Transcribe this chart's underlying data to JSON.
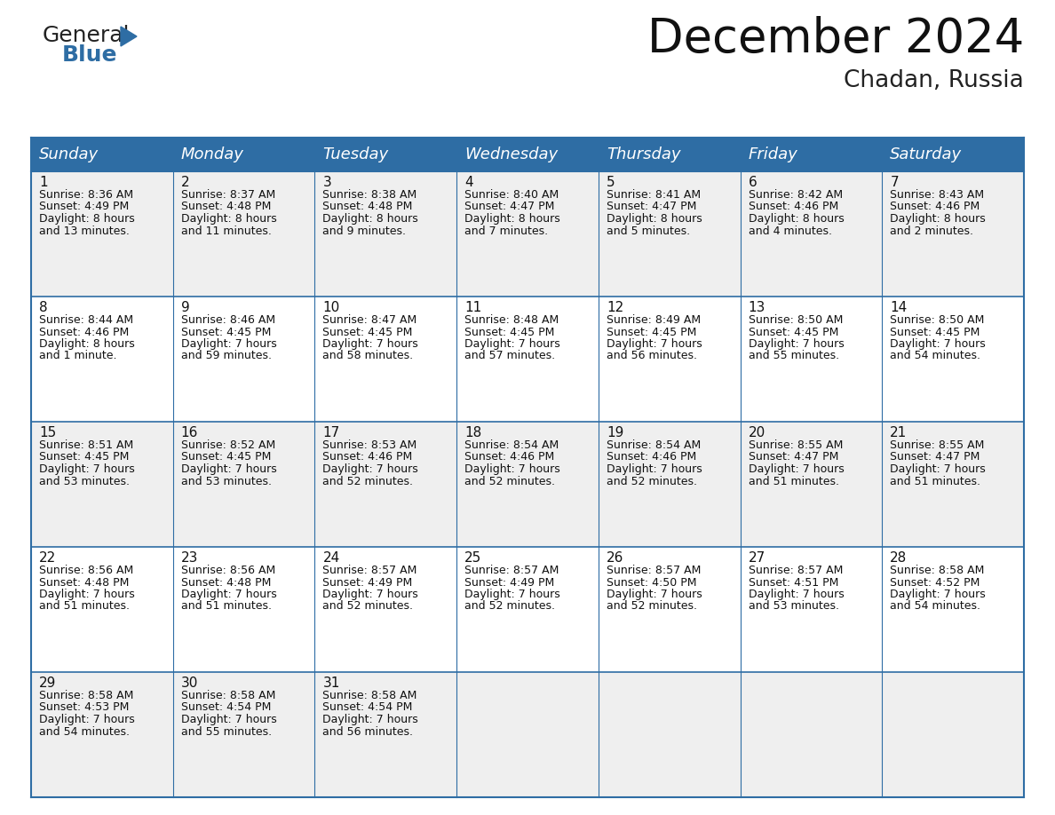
{
  "title": "December 2024",
  "subtitle": "Chadan, Russia",
  "header_color": "#2E6DA4",
  "header_text_color": "#FFFFFF",
  "bg_color": "#FFFFFF",
  "row_colors": [
    "#EFEFEF",
    "#FFFFFF",
    "#EFEFEF",
    "#FFFFFF",
    "#EFEFEF"
  ],
  "grid_color": "#2E6DA4",
  "cell_line_color": "#AAAAAA",
  "days_of_week": [
    "Sunday",
    "Monday",
    "Tuesday",
    "Wednesday",
    "Thursday",
    "Friday",
    "Saturday"
  ],
  "title_fontsize": 38,
  "subtitle_fontsize": 19,
  "header_fontsize": 13,
  "day_number_fontsize": 11,
  "cell_fontsize": 9,
  "logo_general_fontsize": 18,
  "logo_blue_fontsize": 18,
  "calendar_data": [
    [
      {
        "day": 1,
        "sunrise": "8:36 AM",
        "sunset": "4:49 PM",
        "daylight_hours": 8,
        "daylight_minutes": 13
      },
      {
        "day": 2,
        "sunrise": "8:37 AM",
        "sunset": "4:48 PM",
        "daylight_hours": 8,
        "daylight_minutes": 11
      },
      {
        "day": 3,
        "sunrise": "8:38 AM",
        "sunset": "4:48 PM",
        "daylight_hours": 8,
        "daylight_minutes": 9
      },
      {
        "day": 4,
        "sunrise": "8:40 AM",
        "sunset": "4:47 PM",
        "daylight_hours": 8,
        "daylight_minutes": 7
      },
      {
        "day": 5,
        "sunrise": "8:41 AM",
        "sunset": "4:47 PM",
        "daylight_hours": 8,
        "daylight_minutes": 5
      },
      {
        "day": 6,
        "sunrise": "8:42 AM",
        "sunset": "4:46 PM",
        "daylight_hours": 8,
        "daylight_minutes": 4
      },
      {
        "day": 7,
        "sunrise": "8:43 AM",
        "sunset": "4:46 PM",
        "daylight_hours": 8,
        "daylight_minutes": 2
      }
    ],
    [
      {
        "day": 8,
        "sunrise": "8:44 AM",
        "sunset": "4:46 PM",
        "daylight_hours": 8,
        "daylight_minutes": 1
      },
      {
        "day": 9,
        "sunrise": "8:46 AM",
        "sunset": "4:45 PM",
        "daylight_hours": 7,
        "daylight_minutes": 59
      },
      {
        "day": 10,
        "sunrise": "8:47 AM",
        "sunset": "4:45 PM",
        "daylight_hours": 7,
        "daylight_minutes": 58
      },
      {
        "day": 11,
        "sunrise": "8:48 AM",
        "sunset": "4:45 PM",
        "daylight_hours": 7,
        "daylight_minutes": 57
      },
      {
        "day": 12,
        "sunrise": "8:49 AM",
        "sunset": "4:45 PM",
        "daylight_hours": 7,
        "daylight_minutes": 56
      },
      {
        "day": 13,
        "sunrise": "8:50 AM",
        "sunset": "4:45 PM",
        "daylight_hours": 7,
        "daylight_minutes": 55
      },
      {
        "day": 14,
        "sunrise": "8:50 AM",
        "sunset": "4:45 PM",
        "daylight_hours": 7,
        "daylight_minutes": 54
      }
    ],
    [
      {
        "day": 15,
        "sunrise": "8:51 AM",
        "sunset": "4:45 PM",
        "daylight_hours": 7,
        "daylight_minutes": 53
      },
      {
        "day": 16,
        "sunrise": "8:52 AM",
        "sunset": "4:45 PM",
        "daylight_hours": 7,
        "daylight_minutes": 53
      },
      {
        "day": 17,
        "sunrise": "8:53 AM",
        "sunset": "4:46 PM",
        "daylight_hours": 7,
        "daylight_minutes": 52
      },
      {
        "day": 18,
        "sunrise": "8:54 AM",
        "sunset": "4:46 PM",
        "daylight_hours": 7,
        "daylight_minutes": 52
      },
      {
        "day": 19,
        "sunrise": "8:54 AM",
        "sunset": "4:46 PM",
        "daylight_hours": 7,
        "daylight_minutes": 52
      },
      {
        "day": 20,
        "sunrise": "8:55 AM",
        "sunset": "4:47 PM",
        "daylight_hours": 7,
        "daylight_minutes": 51
      },
      {
        "day": 21,
        "sunrise": "8:55 AM",
        "sunset": "4:47 PM",
        "daylight_hours": 7,
        "daylight_minutes": 51
      }
    ],
    [
      {
        "day": 22,
        "sunrise": "8:56 AM",
        "sunset": "4:48 PM",
        "daylight_hours": 7,
        "daylight_minutes": 51
      },
      {
        "day": 23,
        "sunrise": "8:56 AM",
        "sunset": "4:48 PM",
        "daylight_hours": 7,
        "daylight_minutes": 51
      },
      {
        "day": 24,
        "sunrise": "8:57 AM",
        "sunset": "4:49 PM",
        "daylight_hours": 7,
        "daylight_minutes": 52
      },
      {
        "day": 25,
        "sunrise": "8:57 AM",
        "sunset": "4:49 PM",
        "daylight_hours": 7,
        "daylight_minutes": 52
      },
      {
        "day": 26,
        "sunrise": "8:57 AM",
        "sunset": "4:50 PM",
        "daylight_hours": 7,
        "daylight_minutes": 52
      },
      {
        "day": 27,
        "sunrise": "8:57 AM",
        "sunset": "4:51 PM",
        "daylight_hours": 7,
        "daylight_minutes": 53
      },
      {
        "day": 28,
        "sunrise": "8:58 AM",
        "sunset": "4:52 PM",
        "daylight_hours": 7,
        "daylight_minutes": 54
      }
    ],
    [
      {
        "day": 29,
        "sunrise": "8:58 AM",
        "sunset": "4:53 PM",
        "daylight_hours": 7,
        "daylight_minutes": 54
      },
      {
        "day": 30,
        "sunrise": "8:58 AM",
        "sunset": "4:54 PM",
        "daylight_hours": 7,
        "daylight_minutes": 55
      },
      {
        "day": 31,
        "sunrise": "8:58 AM",
        "sunset": "4:54 PM",
        "daylight_hours": 7,
        "daylight_minutes": 56
      },
      null,
      null,
      null,
      null
    ]
  ]
}
